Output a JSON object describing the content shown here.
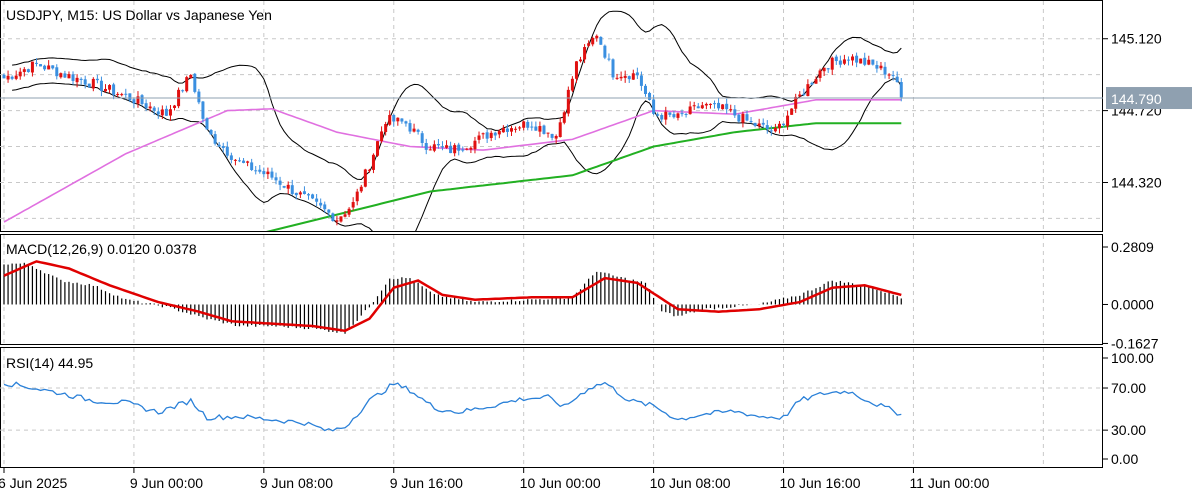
{
  "window": {
    "symbol": "USDJPY",
    "timeframe": "M15",
    "description": "US Dollar vs Japanese Yen",
    "title": "USDJPY, M15:  US Dollar vs Japanese Yen"
  },
  "colors": {
    "background": "#ffffff",
    "grid": "#c8c8c8",
    "bull_candle": "#e01010",
    "bear_candle": "#3a8fe0",
    "bollinger": "#000000",
    "ma_pink": "#e070e0",
    "ma_green": "#22b022",
    "current_price_line": "#8fa0b0",
    "current_price_tag": "#8fa0b0",
    "macd_hist": "#000000",
    "macd_signal": "#e00000",
    "rsi": "#2a80d8"
  },
  "chart_data": [
    {
      "type": "candlestick",
      "panel": "price",
      "title": "USDJPY, M15:  US Dollar vs Japanese Yen",
      "ylim": [
        144.05,
        145.33
      ],
      "yticks": [
        "145.120",
        "144.720",
        "144.320"
      ],
      "ytick_values": [
        145.12,
        144.72,
        144.32
      ],
      "current_price": 144.79,
      "current_price_label": "144.790",
      "hidden_tick_label": "144.720",
      "x_labels": [
        "6 Jun 2025",
        "9 Jun 00:00",
        "9 Jun 08:00",
        "9 Jun 16:00",
        "10 Jun 00:00",
        "10 Jun 08:00",
        "10 Jun 16:00",
        "11 Jun 00:00"
      ],
      "close_anchors": [
        [
          0,
          144.9
        ],
        [
          8,
          144.98
        ],
        [
          15,
          144.92
        ],
        [
          22,
          144.87
        ],
        [
          30,
          144.8
        ],
        [
          40,
          144.7
        ],
        [
          46,
          144.92
        ],
        [
          50,
          144.6
        ],
        [
          58,
          144.43
        ],
        [
          66,
          144.35
        ],
        [
          75,
          144.22
        ],
        [
          82,
          144.12
        ],
        [
          86,
          144.2
        ],
        [
          90,
          144.42
        ],
        [
          94,
          144.67
        ],
        [
          99,
          144.65
        ],
        [
          104,
          144.53
        ],
        [
          110,
          144.5
        ],
        [
          116,
          144.55
        ],
        [
          122,
          144.62
        ],
        [
          130,
          144.65
        ],
        [
          136,
          144.58
        ],
        [
          141,
          144.98
        ],
        [
          146,
          145.15
        ],
        [
          150,
          144.93
        ],
        [
          156,
          144.92
        ],
        [
          160,
          144.7
        ],
        [
          166,
          144.68
        ],
        [
          172,
          144.75
        ],
        [
          178,
          144.72
        ],
        [
          184,
          144.65
        ],
        [
          190,
          144.6
        ],
        [
          196,
          144.8
        ],
        [
          202,
          144.97
        ],
        [
          208,
          145.02
        ],
        [
          214,
          144.97
        ],
        [
          219,
          144.92
        ],
        [
          221,
          144.79
        ]
      ],
      "moving_average_pink": [
        [
          0,
          144.1
        ],
        [
          30,
          144.48
        ],
        [
          55,
          144.72
        ],
        [
          66,
          144.73
        ],
        [
          82,
          144.6
        ],
        [
          100,
          144.52
        ],
        [
          118,
          144.5
        ],
        [
          140,
          144.56
        ],
        [
          160,
          144.72
        ],
        [
          180,
          144.7
        ],
        [
          200,
          144.78
        ],
        [
          221,
          144.78
        ]
      ],
      "moving_average_green": [
        [
          62,
          144.03
        ],
        [
          80,
          144.13
        ],
        [
          105,
          144.27
        ],
        [
          140,
          144.36
        ],
        [
          160,
          144.52
        ],
        [
          180,
          144.6
        ],
        [
          200,
          144.65
        ],
        [
          221,
          144.65
        ]
      ]
    },
    {
      "type": "macd",
      "panel": "macd",
      "label": "MACD(12,26,9) 0.0120 0.0378",
      "params": "12,26,9",
      "main_value": 0.012,
      "signal_value": 0.0378,
      "ylim": [
        -0.165,
        0.29
      ],
      "yticks": [
        "0.2809",
        "0.0000",
        "-0.1627"
      ],
      "ytick_values": [
        0.2809,
        0.0,
        -0.1627
      ],
      "hist_anchors": [
        [
          0,
          0.17
        ],
        [
          6,
          0.17
        ],
        [
          14,
          0.1
        ],
        [
          22,
          0.08
        ],
        [
          30,
          0.02
        ],
        [
          40,
          -0.01
        ],
        [
          50,
          -0.06
        ],
        [
          58,
          -0.09
        ],
        [
          66,
          -0.09
        ],
        [
          76,
          -0.1
        ],
        [
          84,
          -0.12
        ],
        [
          90,
          -0.01
        ],
        [
          95,
          0.11
        ],
        [
          100,
          0.11
        ],
        [
          106,
          0.04
        ],
        [
          116,
          0.01
        ],
        [
          130,
          0.02
        ],
        [
          140,
          0.03
        ],
        [
          146,
          0.14
        ],
        [
          150,
          0.12
        ],
        [
          158,
          0.09
        ],
        [
          162,
          -0.03
        ],
        [
          166,
          -0.05
        ],
        [
          172,
          -0.02
        ],
        [
          186,
          0.0
        ],
        [
          196,
          0.04
        ],
        [
          204,
          0.1
        ],
        [
          212,
          0.08
        ],
        [
          221,
          0.03
        ]
      ],
      "signal_anchors": [
        [
          0,
          0.12
        ],
        [
          8,
          0.18
        ],
        [
          16,
          0.15
        ],
        [
          26,
          0.08
        ],
        [
          38,
          0.01
        ],
        [
          48,
          -0.03
        ],
        [
          56,
          -0.07
        ],
        [
          66,
          -0.08
        ],
        [
          76,
          -0.09
        ],
        [
          84,
          -0.11
        ],
        [
          90,
          -0.06
        ],
        [
          96,
          0.07
        ],
        [
          102,
          0.1
        ],
        [
          108,
          0.04
        ],
        [
          116,
          0.02
        ],
        [
          130,
          0.03
        ],
        [
          140,
          0.03
        ],
        [
          148,
          0.11
        ],
        [
          156,
          0.09
        ],
        [
          166,
          -0.02
        ],
        [
          176,
          -0.03
        ],
        [
          186,
          -0.02
        ],
        [
          196,
          0.01
        ],
        [
          204,
          0.07
        ],
        [
          212,
          0.08
        ],
        [
          221,
          0.04
        ]
      ]
    },
    {
      "type": "line",
      "panel": "rsi",
      "label": "RSI(14) 44.95",
      "period": 14,
      "value": 44.95,
      "ylim": [
        -5,
        108
      ],
      "yticks": [
        "100.00",
        "70.00",
        "30.00",
        "0.00"
      ],
      "ytick_values": [
        100,
        70,
        30,
        0
      ],
      "anchors": [
        [
          0,
          75
        ],
        [
          6,
          71
        ],
        [
          14,
          65
        ],
        [
          22,
          58
        ],
        [
          30,
          56
        ],
        [
          38,
          47
        ],
        [
          46,
          58
        ],
        [
          50,
          42
        ],
        [
          58,
          43
        ],
        [
          66,
          40
        ],
        [
          74,
          37
        ],
        [
          80,
          29
        ],
        [
          84,
          33
        ],
        [
          90,
          58
        ],
        [
          96,
          74
        ],
        [
          100,
          68
        ],
        [
          106,
          51
        ],
        [
          112,
          47
        ],
        [
          120,
          53
        ],
        [
          128,
          60
        ],
        [
          134,
          61
        ],
        [
          138,
          52
        ],
        [
          144,
          70
        ],
        [
          148,
          75
        ],
        [
          154,
          58
        ],
        [
          160,
          53
        ],
        [
          166,
          40
        ],
        [
          172,
          45
        ],
        [
          180,
          48
        ],
        [
          186,
          43
        ],
        [
          192,
          42
        ],
        [
          196,
          58
        ],
        [
          202,
          65
        ],
        [
          208,
          67
        ],
        [
          214,
          56
        ],
        [
          218,
          50
        ],
        [
          221,
          44.95
        ]
      ]
    }
  ]
}
